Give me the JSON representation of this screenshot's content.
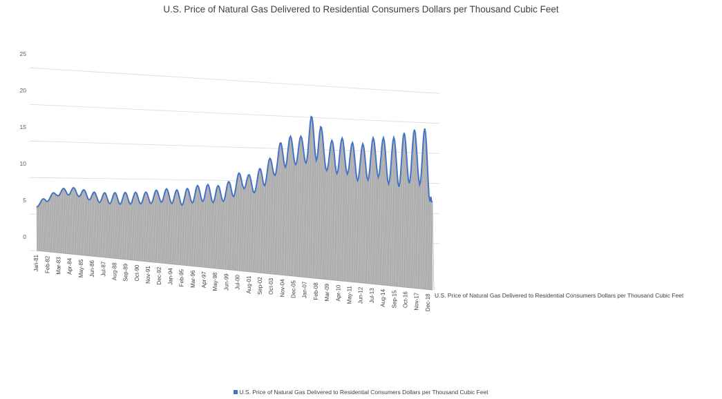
{
  "chart_data": {
    "type": "area",
    "title": "U.S. Price of Natural Gas Delivered to Residential Consumers Dollars per Thousand Cubic Feet",
    "xlabel": "",
    "ylabel": "",
    "ylim": [
      0,
      25
    ],
    "y_ticks": [
      "0",
      "5",
      "10",
      "15",
      "20",
      "25"
    ],
    "x_tick_labels": [
      "Jan-81",
      "Feb-82",
      "Mar-83",
      "Apr-84",
      "May-85",
      "Jun-86",
      "Jul-87",
      "Aug-88",
      "Sep-89",
      "Oct-90",
      "Nov-91",
      "Dec-92",
      "Jan-94",
      "Feb-95",
      "Mar-96",
      "Apr-97",
      "May-98",
      "Jun-99",
      "Jul-00",
      "Aug-01",
      "Sep-02",
      "Oct-03",
      "Nov-04",
      "Dec-05",
      "Jan-07",
      "Feb-08",
      "Mar-09",
      "Apr-10",
      "May-11",
      "Jun-12",
      "Jul-13",
      "Aug-14",
      "Sep-15",
      "Oct-16",
      "Nov-17",
      "Dec-18"
    ],
    "x_range": [
      "Jan-81",
      "May-19"
    ],
    "grid": true,
    "legend_position": "bottom",
    "series": [
      {
        "name": "U.S. Price of Natural Gas Delivered to Residential Consumers Dollars per Thousand Cubic Feet",
        "color": "#4472C4",
        "annual": [
          {
            "year": 1981,
            "low": 4.1,
            "high": 4.6
          },
          {
            "year": 1982,
            "low": 4.8,
            "high": 5.6
          },
          {
            "year": 1983,
            "low": 5.6,
            "high": 6.3
          },
          {
            "year": 1984,
            "low": 5.7,
            "high": 6.8
          },
          {
            "year": 1985,
            "low": 5.5,
            "high": 6.6
          },
          {
            "year": 1986,
            "low": 5.0,
            "high": 6.2
          },
          {
            "year": 1987,
            "low": 4.6,
            "high": 5.9
          },
          {
            "year": 1988,
            "low": 4.4,
            "high": 5.9
          },
          {
            "year": 1989,
            "low": 4.3,
            "high": 5.9
          },
          {
            "year": 1990,
            "low": 4.3,
            "high": 5.9
          },
          {
            "year": 1991,
            "low": 4.3,
            "high": 5.9
          },
          {
            "year": 1992,
            "low": 4.3,
            "high": 5.9
          },
          {
            "year": 1993,
            "low": 4.5,
            "high": 6.3
          },
          {
            "year": 1994,
            "low": 4.3,
            "high": 6.3
          },
          {
            "year": 1995,
            "low": 4.0,
            "high": 6.0
          },
          {
            "year": 1996,
            "low": 4.3,
            "high": 6.5
          },
          {
            "year": 1997,
            "low": 4.5,
            "high": 6.8
          },
          {
            "year": 1998,
            "low": 4.3,
            "high": 6.8
          },
          {
            "year": 1999,
            "low": 4.4,
            "high": 6.5
          },
          {
            "year": 2000,
            "low": 5.0,
            "high": 7.6
          },
          {
            "year": 2001,
            "low": 6.2,
            "high": 8.8
          },
          {
            "year": 2002,
            "low": 5.5,
            "high": 7.5
          },
          {
            "year": 2003,
            "low": 6.4,
            "high": 9.8
          },
          {
            "year": 2004,
            "low": 7.8,
            "high": 10.6
          },
          {
            "year": 2005,
            "low": 9.0,
            "high": 13.6
          },
          {
            "year": 2006,
            "low": 9.3,
            "high": 13.0
          },
          {
            "year": 2007,
            "low": 9.5,
            "high": 13.4
          },
          {
            "year": 2008,
            "low": 10.0,
            "high": 17.7
          },
          {
            "year": 2009,
            "low": 8.5,
            "high": 12.0
          },
          {
            "year": 2010,
            "low": 8.0,
            "high": 13.0
          },
          {
            "year": 2011,
            "low": 8.0,
            "high": 12.8
          },
          {
            "year": 2012,
            "low": 7.0,
            "high": 11.8
          },
          {
            "year": 2013,
            "low": 7.0,
            "high": 12.2
          },
          {
            "year": 2014,
            "low": 7.5,
            "high": 13.3
          },
          {
            "year": 2015,
            "low": 6.5,
            "high": 12.5
          },
          {
            "year": 2016,
            "low": 6.0,
            "high": 13.1
          },
          {
            "year": 2017,
            "low": 6.5,
            "high": 13.7
          },
          {
            "year": 2018,
            "low": 6.5,
            "high": 14.0
          },
          {
            "year": 2019,
            "low": 3.9,
            "high": 14.0
          }
        ]
      }
    ]
  },
  "legend": {
    "label": "U.S. Price of Natural Gas Delivered to Residential Consumers Dollars per Thousand Cubic Feet",
    "color": "#4472C4"
  },
  "depth_label": "U.S. Price of Natural Gas Delivered to Residential Consumers Dollars per Thousand Cubic Feet"
}
